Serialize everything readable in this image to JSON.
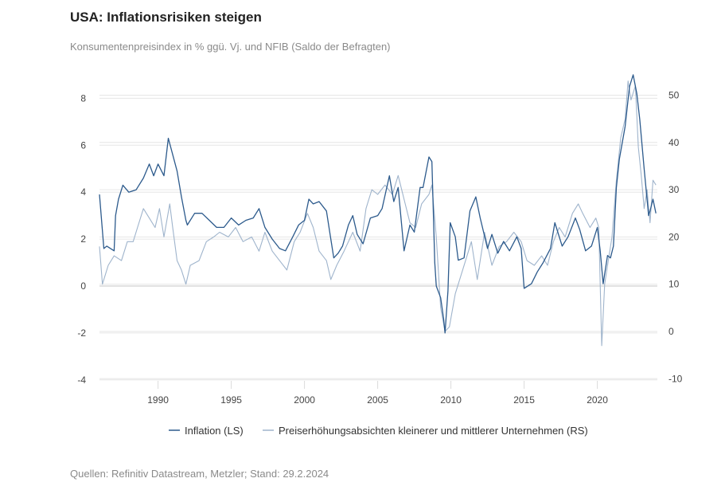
{
  "title": "USA: Inflationsrisiken steigen",
  "subtitle": "Konsumentenpreisindex in % ggü. Vj. und NFIB (Saldo der Befragten)",
  "source": "Quellen: Refinitiv Datastream, Metzler; Stand: 29.2.2024",
  "chart_data": {
    "type": "line",
    "title": "USA: Inflationsrisiken steigen",
    "xlim": [
      1986,
      2024.1
    ],
    "x_ticks": [
      1990,
      1995,
      2000,
      2005,
      2010,
      2015,
      2020
    ],
    "y_left": {
      "lim": [
        -4,
        9
      ],
      "ticks": [
        -4,
        -2,
        0,
        2,
        4,
        6,
        8
      ]
    },
    "y_right": {
      "lim": [
        -10,
        54
      ],
      "ticks": [
        -10,
        0,
        10,
        20,
        30,
        40,
        50
      ]
    },
    "grid": true,
    "legend_position": "bottom",
    "series": [
      {
        "name": "Inflation (LS)",
        "axis": "left",
        "color": "#2c5a8c",
        "points": [
          [
            1986.0,
            3.9
          ],
          [
            1986.3,
            1.6
          ],
          [
            1986.5,
            1.7
          ],
          [
            1987.0,
            1.5
          ],
          [
            1987.1,
            3.0
          ],
          [
            1987.3,
            3.7
          ],
          [
            1987.6,
            4.3
          ],
          [
            1988.0,
            4.0
          ],
          [
            1988.5,
            4.1
          ],
          [
            1989.0,
            4.6
          ],
          [
            1989.4,
            5.2
          ],
          [
            1989.7,
            4.7
          ],
          [
            1990.0,
            5.2
          ],
          [
            1990.4,
            4.7
          ],
          [
            1990.7,
            6.3
          ],
          [
            1991.0,
            5.6
          ],
          [
            1991.3,
            4.9
          ],
          [
            1991.6,
            3.8
          ],
          [
            1991.9,
            2.8
          ],
          [
            1992.0,
            2.6
          ],
          [
            1992.5,
            3.1
          ],
          [
            1993.0,
            3.1
          ],
          [
            1993.5,
            2.8
          ],
          [
            1994.0,
            2.5
          ],
          [
            1994.5,
            2.5
          ],
          [
            1995.0,
            2.9
          ],
          [
            1995.5,
            2.6
          ],
          [
            1996.0,
            2.8
          ],
          [
            1996.5,
            2.9
          ],
          [
            1996.9,
            3.3
          ],
          [
            1997.3,
            2.5
          ],
          [
            1997.8,
            2.0
          ],
          [
            1998.3,
            1.6
          ],
          [
            1998.7,
            1.5
          ],
          [
            1999.2,
            2.1
          ],
          [
            1999.6,
            2.6
          ],
          [
            2000.0,
            2.8
          ],
          [
            2000.3,
            3.7
          ],
          [
            2000.6,
            3.5
          ],
          [
            2001.0,
            3.6
          ],
          [
            2001.5,
            3.2
          ],
          [
            2001.8,
            2.0
          ],
          [
            2002.0,
            1.2
          ],
          [
            2002.3,
            1.4
          ],
          [
            2002.6,
            1.7
          ],
          [
            2003.0,
            2.6
          ],
          [
            2003.3,
            3.0
          ],
          [
            2003.6,
            2.2
          ],
          [
            2004.0,
            1.8
          ],
          [
            2004.5,
            2.9
          ],
          [
            2005.0,
            3.0
          ],
          [
            2005.3,
            3.3
          ],
          [
            2005.8,
            4.7
          ],
          [
            2006.1,
            3.6
          ],
          [
            2006.4,
            4.2
          ],
          [
            2006.8,
            1.5
          ],
          [
            2007.2,
            2.6
          ],
          [
            2007.5,
            2.3
          ],
          [
            2007.9,
            4.2
          ],
          [
            2008.1,
            4.2
          ],
          [
            2008.5,
            5.5
          ],
          [
            2008.7,
            5.3
          ],
          [
            2008.9,
            1.0
          ],
          [
            2009.0,
            0.0
          ],
          [
            2009.3,
            -0.5
          ],
          [
            2009.5,
            -1.4
          ],
          [
            2009.6,
            -2.0
          ],
          [
            2009.8,
            -0.2
          ],
          [
            2009.95,
            2.7
          ],
          [
            2010.3,
            2.1
          ],
          [
            2010.5,
            1.1
          ],
          [
            2010.9,
            1.2
          ],
          [
            2011.3,
            3.2
          ],
          [
            2011.7,
            3.8
          ],
          [
            2012.0,
            2.9
          ],
          [
            2012.5,
            1.6
          ],
          [
            2012.8,
            2.2
          ],
          [
            2013.2,
            1.4
          ],
          [
            2013.6,
            1.9
          ],
          [
            2014.0,
            1.5
          ],
          [
            2014.5,
            2.1
          ],
          [
            2014.8,
            1.6
          ],
          [
            2015.0,
            -0.1
          ],
          [
            2015.5,
            0.1
          ],
          [
            2015.9,
            0.6
          ],
          [
            2016.3,
            1.0
          ],
          [
            2016.8,
            1.6
          ],
          [
            2017.1,
            2.7
          ],
          [
            2017.6,
            1.7
          ],
          [
            2018.0,
            2.1
          ],
          [
            2018.5,
            2.9
          ],
          [
            2018.8,
            2.4
          ],
          [
            2019.2,
            1.5
          ],
          [
            2019.6,
            1.7
          ],
          [
            2020.0,
            2.5
          ],
          [
            2020.2,
            1.5
          ],
          [
            2020.4,
            0.1
          ],
          [
            2020.7,
            1.3
          ],
          [
            2020.9,
            1.2
          ],
          [
            2021.1,
            1.7
          ],
          [
            2021.3,
            4.2
          ],
          [
            2021.5,
            5.4
          ],
          [
            2021.9,
            6.8
          ],
          [
            2022.2,
            8.5
          ],
          [
            2022.45,
            9.0
          ],
          [
            2022.7,
            8.2
          ],
          [
            2022.9,
            7.1
          ],
          [
            2023.2,
            5.0
          ],
          [
            2023.5,
            3.0
          ],
          [
            2023.6,
            3.2
          ],
          [
            2023.8,
            3.7
          ],
          [
            2024.0,
            3.1
          ]
        ]
      },
      {
        "name": "Preiserhöhungsabsichten kleinerer und mittlerer Unternehmen (RS)",
        "axis": "right",
        "color": "#9fb4cc",
        "points": [
          [
            1986.0,
            18
          ],
          [
            1986.2,
            10
          ],
          [
            1986.6,
            14
          ],
          [
            1987.0,
            16
          ],
          [
            1987.5,
            15
          ],
          [
            1987.9,
            19
          ],
          [
            1988.3,
            19
          ],
          [
            1988.6,
            22
          ],
          [
            1989.0,
            26
          ],
          [
            1989.4,
            24
          ],
          [
            1989.8,
            22
          ],
          [
            1990.1,
            26
          ],
          [
            1990.4,
            20
          ],
          [
            1990.8,
            27
          ],
          [
            1991.0,
            22
          ],
          [
            1991.3,
            15
          ],
          [
            1991.6,
            13
          ],
          [
            1991.9,
            10
          ],
          [
            1992.2,
            14
          ],
          [
            1992.8,
            15
          ],
          [
            1993.3,
            19
          ],
          [
            1993.8,
            20
          ],
          [
            1994.2,
            21
          ],
          [
            1994.8,
            20
          ],
          [
            1995.3,
            22
          ],
          [
            1995.8,
            19
          ],
          [
            1996.4,
            20
          ],
          [
            1996.9,
            17
          ],
          [
            1997.3,
            21
          ],
          [
            1997.8,
            17
          ],
          [
            1998.3,
            15
          ],
          [
            1998.8,
            13
          ],
          [
            1999.3,
            19
          ],
          [
            1999.7,
            21
          ],
          [
            2000.2,
            25
          ],
          [
            2000.6,
            22
          ],
          [
            2001.0,
            17
          ],
          [
            2001.5,
            15
          ],
          [
            2001.8,
            11
          ],
          [
            2002.2,
            14
          ],
          [
            2002.7,
            17
          ],
          [
            2003.3,
            21
          ],
          [
            2003.8,
            17
          ],
          [
            2004.2,
            26
          ],
          [
            2004.6,
            30
          ],
          [
            2005.0,
            29
          ],
          [
            2005.5,
            31
          ],
          [
            2006.0,
            29
          ],
          [
            2006.4,
            33
          ],
          [
            2006.8,
            28
          ],
          [
            2007.2,
            23
          ],
          [
            2007.6,
            22
          ],
          [
            2008.0,
            27
          ],
          [
            2008.5,
            29
          ],
          [
            2008.7,
            31
          ],
          [
            2009.0,
            20
          ],
          [
            2009.3,
            5
          ],
          [
            2009.6,
            0
          ],
          [
            2009.9,
            1
          ],
          [
            2010.3,
            8
          ],
          [
            2010.7,
            12
          ],
          [
            2011.0,
            15
          ],
          [
            2011.4,
            19
          ],
          [
            2011.8,
            11
          ],
          [
            2012.3,
            21
          ],
          [
            2012.8,
            14
          ],
          [
            2013.3,
            18
          ],
          [
            2013.8,
            19
          ],
          [
            2014.3,
            21
          ],
          [
            2014.8,
            19
          ],
          [
            2015.2,
            15
          ],
          [
            2015.7,
            14
          ],
          [
            2016.2,
            16
          ],
          [
            2016.6,
            14
          ],
          [
            2017.0,
            19
          ],
          [
            2017.4,
            22
          ],
          [
            2017.8,
            20
          ],
          [
            2018.3,
            25
          ],
          [
            2018.7,
            27
          ],
          [
            2019.0,
            25
          ],
          [
            2019.5,
            22
          ],
          [
            2019.9,
            24
          ],
          [
            2020.1,
            22
          ],
          [
            2020.3,
            -3
          ],
          [
            2020.5,
            10
          ],
          [
            2020.8,
            16
          ],
          [
            2021.0,
            20
          ],
          [
            2021.3,
            32
          ],
          [
            2021.6,
            41
          ],
          [
            2021.9,
            45
          ],
          [
            2022.1,
            53
          ],
          [
            2022.3,
            49
          ],
          [
            2022.6,
            52
          ],
          [
            2022.8,
            39
          ],
          [
            2023.0,
            33
          ],
          [
            2023.2,
            26
          ],
          [
            2023.4,
            30
          ],
          [
            2023.6,
            23
          ],
          [
            2023.8,
            32
          ],
          [
            2024.0,
            31
          ]
        ]
      }
    ]
  }
}
